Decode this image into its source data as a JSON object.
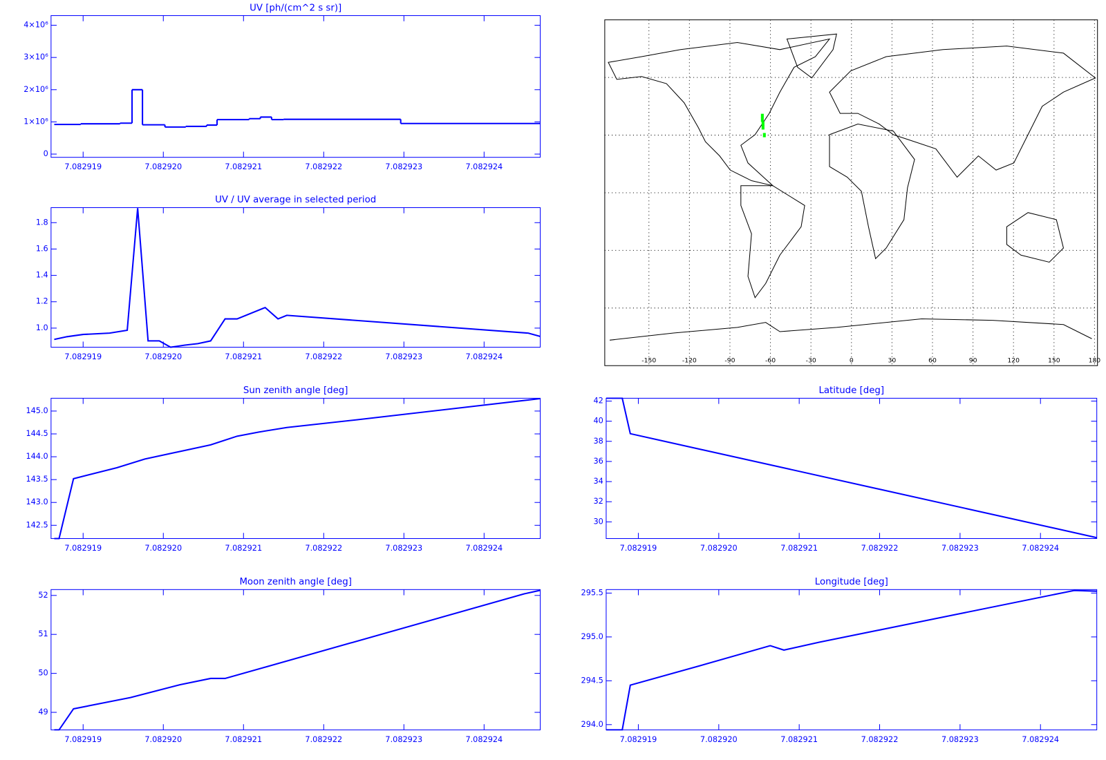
{
  "chart_data": [
    {
      "type": "line",
      "drawstyle": "steps-post",
      "title": "UV [ph/(cm^2 s sr)]",
      "color": "#0000ff",
      "x": [
        7.08291864,
        7.08291897,
        7.08291946,
        7.08291961,
        7.08291974,
        7.08292002,
        7.08292028,
        7.08292054,
        7.08292067,
        7.08292107,
        7.08292121,
        7.08292135,
        7.0829215,
        7.08292296
      ],
      "values": [
        920000,
        940000,
        960000,
        2000000,
        910000,
        840000,
        860000,
        900000,
        1070000,
        1100000,
        1150000,
        1070000,
        1080000,
        950000
      ],
      "xlim": [
        7.0829186,
        7.0829247
      ],
      "ylim": [
        -100000,
        4300000
      ],
      "xticks": [
        7.082919,
        {
          "value": 7.08292,
          "label": "7.082920"
        },
        7.082921,
        7.082922,
        7.082923,
        7.082924
      ],
      "yticks": [
        0,
        {
          "value": 1000000,
          "label": "1×10⁶"
        },
        {
          "value": 2000000,
          "label": "2×10⁶"
        },
        {
          "value": 3000000,
          "label": "3×10⁶"
        },
        {
          "value": 4000000,
          "label": "4×10⁶"
        }
      ]
    },
    {
      "type": "line",
      "title": "UV / UV average in selected period",
      "color": "#0000ff",
      "x": [
        7.08291864,
        7.0829188,
        7.082919,
        7.08291933,
        7.08291955,
        7.08291968,
        7.08291981,
        7.08291995,
        7.08292009,
        7.08292027,
        7.08292043,
        7.08292059,
        7.08292077,
        7.08292092,
        7.08292127,
        7.08292143,
        7.08292154,
        7.08292455,
        7.08292474
      ],
      "values": [
        0.914,
        0.935,
        0.952,
        0.962,
        0.984,
        1.91,
        0.903,
        0.903,
        0.855,
        0.871,
        0.882,
        0.903,
        1.07,
        1.07,
        1.156,
        1.07,
        1.097,
        0.962,
        0.93
      ],
      "xlim": [
        7.0829186,
        7.0829247
      ],
      "ylim": [
        0.855,
        1.914
      ],
      "xticks": [
        7.082919,
        {
          "value": 7.08292,
          "label": "7.082920"
        },
        7.082921,
        7.082922,
        7.082923,
        7.082924
      ],
      "yticks": [
        {
          "value": 1,
          "label": "1.0"
        },
        1.2,
        1.4,
        1.6,
        1.8
      ]
    },
    {
      "type": "line",
      "title": "Sun zenith angle [deg]",
      "color": "#0000ff",
      "x": [
        7.08291864,
        7.0829187,
        7.08291888,
        7.08291942,
        7.08291977,
        7.08292059,
        7.08292092,
        7.08292119,
        7.08292154,
        7.08292242,
        7.08292474
      ],
      "values": [
        142.21,
        142.21,
        143.52,
        143.76,
        143.95,
        144.26,
        144.45,
        144.54,
        144.64,
        144.81,
        145.28
      ],
      "xlim": [
        7.0829186,
        7.0829247
      ],
      "ylim": [
        142.21,
        145.28
      ],
      "xticks": [
        7.082919,
        {
          "value": 7.08292,
          "label": "7.082920"
        },
        7.082921,
        7.082922,
        7.082923,
        7.082924
      ],
      "yticks": [
        142.5,
        {
          "value": 143,
          "label": "143.0"
        },
        143.5,
        {
          "value": 144,
          "label": "144.0"
        },
        144.5,
        {
          "value": 145,
          "label": "145.0"
        }
      ]
    },
    {
      "type": "line",
      "title": "Moon zenith angle [deg]",
      "color": "#0000ff",
      "x": [
        7.08291864,
        7.0829187,
        7.08291888,
        7.08291959,
        7.08292021,
        7.08292059,
        7.08292077,
        7.08292127,
        7.0829245,
        7.08292474
      ],
      "values": [
        48.55,
        48.55,
        49.09,
        49.38,
        49.71,
        49.87,
        49.87,
        50.16,
        52.04,
        52.15
      ],
      "xlim": [
        7.0829186,
        7.0829247
      ],
      "ylim": [
        48.55,
        52.15
      ],
      "xticks": [
        7.082919,
        {
          "value": 7.08292,
          "label": "7.082920"
        },
        7.082921,
        7.082922,
        7.082923,
        7.082924
      ],
      "yticks": [
        49,
        50,
        51,
        52
      ]
    },
    {
      "type": "map",
      "xlim": [
        -182.7,
        182.2
      ],
      "ylim": [
        -90,
        90
      ],
      "xticks": [
        -150,
        -120,
        -90,
        -60,
        -30,
        0,
        30,
        60,
        90,
        120,
        150,
        180
      ],
      "ygrid": [
        -60,
        -30,
        0,
        30,
        60
      ],
      "points": {
        "color": "#00ff00",
        "x": [
          -66,
          -66,
          -65.5,
          -65.5,
          -64.5
        ],
        "y": [
          40,
          38,
          36,
          34,
          30
        ]
      }
    },
    {
      "type": "line",
      "title": "Latitude [deg]",
      "color": "#0000ff",
      "x": [
        7.0829186,
        7.0829188,
        7.0829189,
        7.08292475
      ],
      "values": [
        42.28,
        42.28,
        38.76,
        28.34
      ],
      "xlim": [
        7.0829186,
        7.0829247
      ],
      "ylim": [
        28.34,
        42.28
      ],
      "xticks": [
        7.082919,
        {
          "value": 7.08292,
          "label": "7.082920"
        },
        7.082921,
        7.082922,
        7.082923,
        7.082924
      ],
      "yticks": [
        30,
        32,
        34,
        36,
        38,
        40,
        42
      ]
    },
    {
      "type": "line",
      "title": "Longitude [deg]",
      "color": "#0000ff",
      "x": [
        7.0829186,
        7.0829188,
        7.0829189,
        7.08291976,
        7.08292064,
        7.08292081,
        7.08292125,
        7.08292442,
        7.08292475
      ],
      "values": [
        293.94,
        293.94,
        294.45,
        294.67,
        294.9,
        294.85,
        294.94,
        295.53,
        295.52
      ],
      "xlim": [
        7.0829186,
        7.0829247
      ],
      "ylim": [
        293.94,
        295.54
      ],
      "xticks": [
        7.082919,
        {
          "value": 7.08292,
          "label": "7.082920"
        },
        7.082921,
        7.082922,
        7.082923,
        7.082924
      ],
      "yticks": [
        {
          "value": 294,
          "label": "294.0"
        },
        294.5,
        {
          "value": 295,
          "label": "295.0"
        },
        295.5
      ]
    }
  ]
}
